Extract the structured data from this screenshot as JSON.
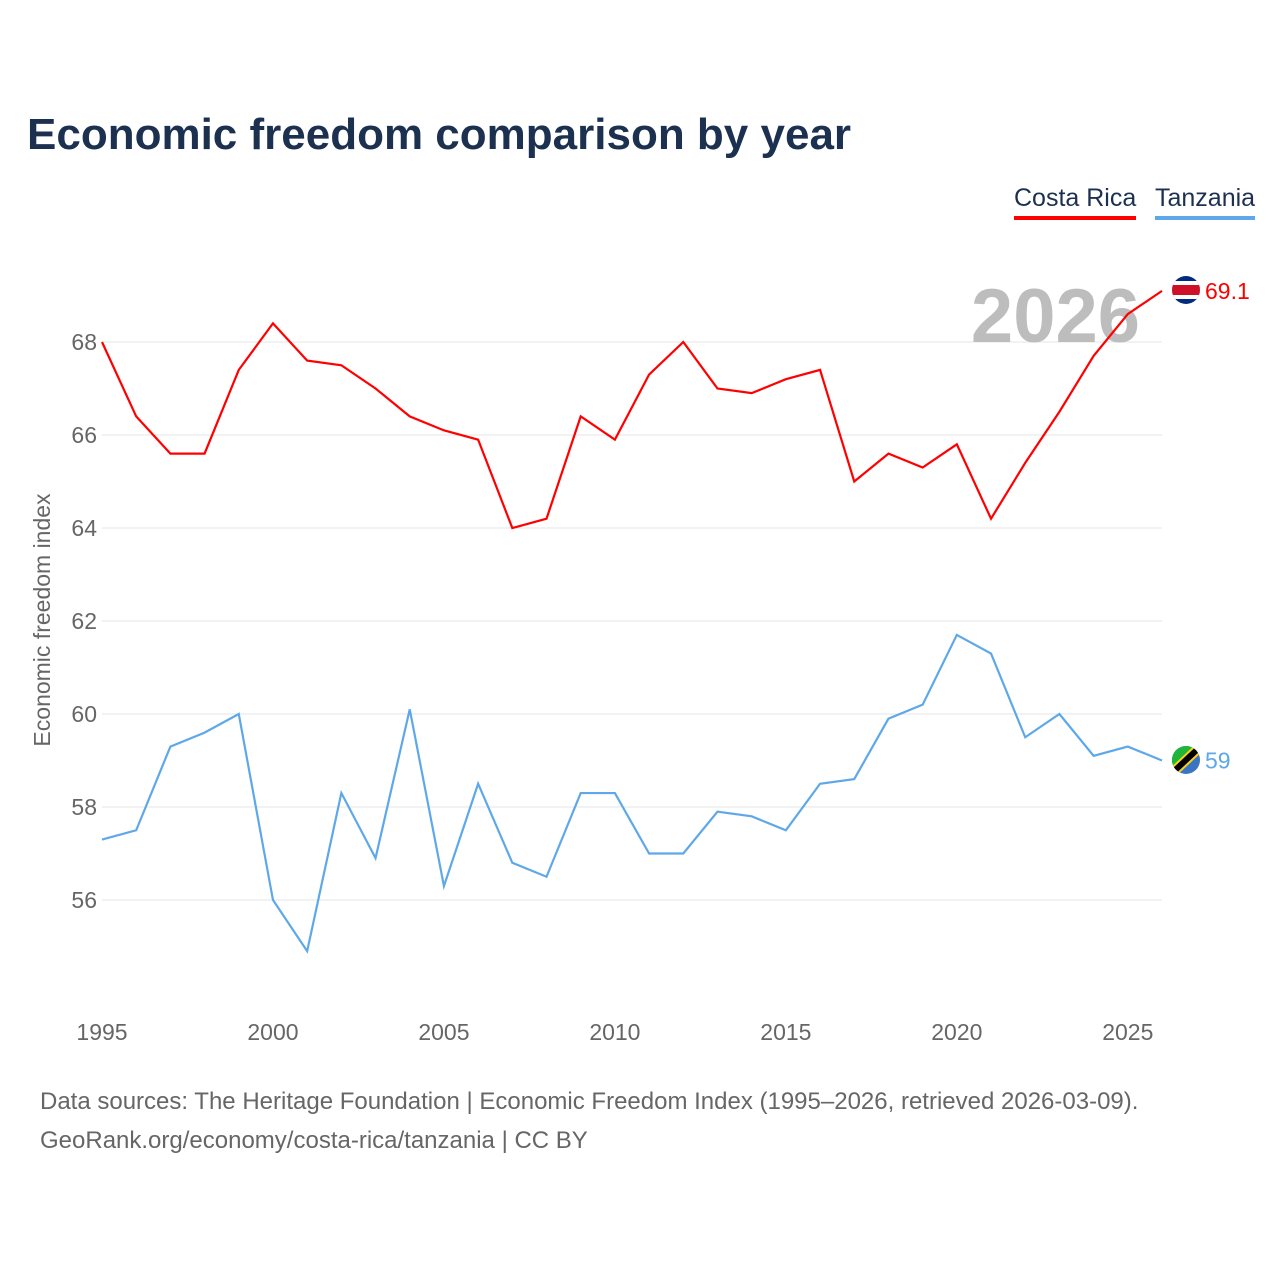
{
  "chart_data": {
    "type": "line",
    "title": "Economic freedom comparison by year",
    "xlabel": "",
    "ylabel": "Economic freedom index",
    "xlim": [
      1995,
      2026
    ],
    "ylim": [
      54.1,
      70
    ],
    "xticks": [
      1995,
      2000,
      2005,
      2010,
      2015,
      2020,
      2025
    ],
    "yticks": [
      56,
      58,
      60,
      62,
      64,
      66,
      68
    ],
    "grid": true,
    "legend_position": "top-right",
    "annotation": "2026",
    "x": [
      1995,
      1996,
      1997,
      1998,
      1999,
      2000,
      2001,
      2002,
      2003,
      2004,
      2005,
      2006,
      2007,
      2008,
      2009,
      2010,
      2011,
      2012,
      2013,
      2014,
      2015,
      2016,
      2017,
      2018,
      2019,
      2020,
      2021,
      2022,
      2023,
      2024,
      2025,
      2026
    ],
    "series": [
      {
        "name": "Costa Rica",
        "color": "#ff0000",
        "end_label": "69.1",
        "values": [
          68.0,
          66.4,
          65.6,
          65.6,
          67.4,
          68.4,
          67.6,
          67.5,
          67.0,
          66.4,
          66.1,
          65.9,
          64.0,
          64.2,
          66.4,
          65.9,
          67.3,
          68.0,
          67.0,
          66.9,
          67.2,
          67.4,
          65.0,
          65.6,
          65.3,
          65.8,
          64.2,
          65.4,
          66.5,
          67.7,
          68.6,
          69.1
        ]
      },
      {
        "name": "Tanzania",
        "color": "#5ea8ea",
        "end_label": "59",
        "values": [
          57.3,
          57.5,
          59.3,
          59.6,
          60.0,
          56.0,
          54.9,
          58.3,
          56.9,
          60.1,
          56.3,
          58.5,
          56.8,
          56.5,
          58.3,
          58.3,
          57.0,
          57.0,
          57.9,
          57.8,
          57.5,
          58.5,
          58.6,
          59.9,
          60.2,
          61.7,
          61.3,
          59.5,
          60.0,
          59.1,
          59.3,
          59.0
        ]
      }
    ]
  },
  "footer": {
    "line1": "Data sources: The Heritage Foundation | Economic Freedom Index (1995–2026, retrieved 2026-03-09).",
    "line2": "GeoRank.org/economy/costa-rica/tanzania | CC BY"
  }
}
